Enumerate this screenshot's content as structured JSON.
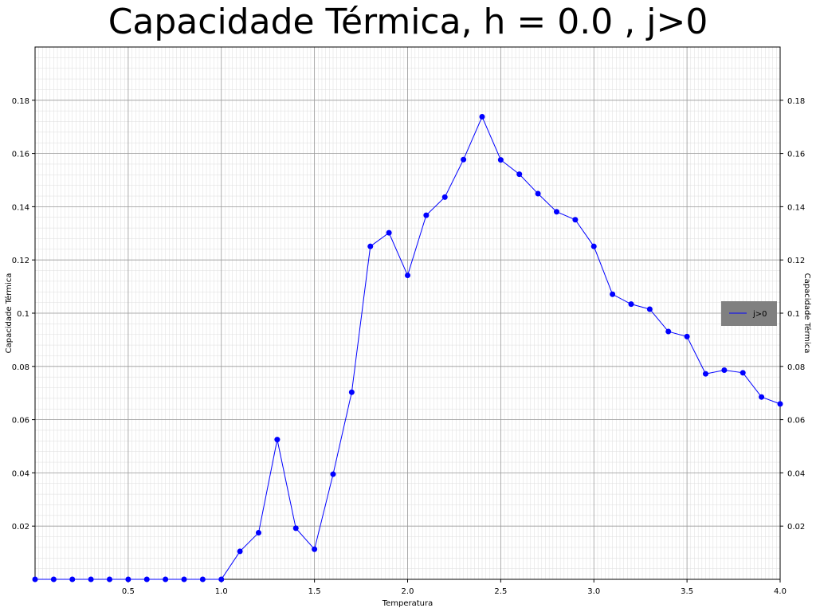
{
  "chart_data": {
    "type": "line",
    "title": "Capacidade Térmica, h = 0.0 , j>0",
    "xlabel": "Temperatura",
    "ylabel": "Capacidade Térmica",
    "ylabel_right": "Capacidade Térmica",
    "xlim": [
      0,
      4.0
    ],
    "ylim": [
      0,
      0.2
    ],
    "x_ticks": [
      0.5,
      1.0,
      1.5,
      2.0,
      2.5,
      3.0,
      3.5,
      4.0
    ],
    "x_tick_labels": [
      "0.5",
      "1.0",
      "1.5",
      "2.0",
      "2.5",
      "3.0",
      "3.5",
      "4.0"
    ],
    "y_ticks": [
      0.02,
      0.04,
      0.06,
      0.08,
      0.1,
      0.12,
      0.14,
      0.16,
      0.18
    ],
    "y_tick_labels": [
      "0.02",
      "0.04",
      "0.06",
      "0.08",
      "0.1",
      "0.12",
      "0.14",
      "0.16",
      "0.18"
    ],
    "grid": "major and minor",
    "legend_position": "right",
    "colors": {
      "series": "#0000ff",
      "legend_bg": "#808080",
      "major_grid": "#999999",
      "minor_grid": "#dddddd"
    },
    "series": [
      {
        "name": "j>0",
        "x": [
          0.0,
          0.1,
          0.2,
          0.3,
          0.4,
          0.5,
          0.6,
          0.7,
          0.8,
          0.9,
          1.0,
          1.1,
          1.2,
          1.3,
          1.4,
          1.5,
          1.6,
          1.7,
          1.8,
          1.9,
          2.0,
          2.1,
          2.2,
          2.3,
          2.4,
          2.5,
          2.6,
          2.7,
          2.8,
          2.9,
          3.0,
          3.1,
          3.2,
          3.3,
          3.4,
          3.5,
          3.6,
          3.7,
          3.8,
          3.9,
          4.0
        ],
        "y": [
          0.0,
          0.0,
          0.0,
          0.0,
          0.0,
          0.0,
          0.0,
          0.0,
          0.0,
          0.0,
          0.0,
          0.0105,
          0.0175,
          0.0525,
          0.0192,
          0.0113,
          0.0395,
          0.0703,
          0.1251,
          0.1302,
          0.1142,
          0.1368,
          0.1436,
          0.1577,
          0.1738,
          0.1576,
          0.1522,
          0.1449,
          0.1381,
          0.1351,
          0.1251,
          0.1071,
          0.1034,
          0.1015,
          0.0931,
          0.0912,
          0.0772,
          0.0786,
          0.0776,
          0.0685,
          0.0659
        ]
      }
    ]
  }
}
